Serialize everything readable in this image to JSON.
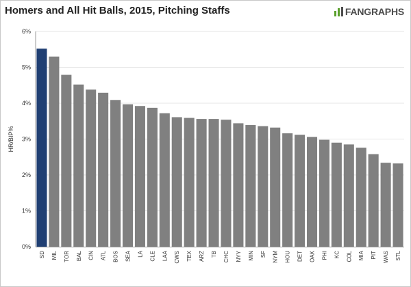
{
  "header": {
    "title": "Homers and All Hit Balls, 2015, Pitching Staffs",
    "logo_text": "FANGRAPHS"
  },
  "colors": {
    "highlight": "#203f73",
    "bar": "#808080",
    "grid": "#e6e6e6",
    "logo_accent": "#5aa02c"
  },
  "chart_data": {
    "type": "bar",
    "title": "Homers and All Hit Balls, 2015, Pitching Staffs",
    "xlabel": "",
    "ylabel": "HR/BIP%",
    "ylim": [
      0,
      6
    ],
    "ytick_labels": [
      "0%",
      "1%",
      "2%",
      "3%",
      "4%",
      "5%",
      "6%"
    ],
    "grid": true,
    "highlighted_category": "SD",
    "categories": [
      "SD",
      "MIL",
      "TOR",
      "BAL",
      "CIN",
      "ATL",
      "BOS",
      "SEA",
      "LA",
      "CLE",
      "LAA",
      "CWS",
      "TEX",
      "ARZ",
      "TB",
      "CHC",
      "NYY",
      "MIN",
      "SF",
      "NYM",
      "HOU",
      "DET",
      "OAK",
      "PHI",
      "KC",
      "COL",
      "MIA",
      "PIT",
      "WAS",
      "STL"
    ],
    "values": [
      5.52,
      5.3,
      4.79,
      4.52,
      4.38,
      4.29,
      4.09,
      3.97,
      3.92,
      3.87,
      3.72,
      3.61,
      3.59,
      3.56,
      3.56,
      3.54,
      3.44,
      3.39,
      3.36,
      3.32,
      3.16,
      3.12,
      3.06,
      2.98,
      2.9,
      2.85,
      2.76,
      2.58,
      2.34,
      2.32
    ]
  }
}
